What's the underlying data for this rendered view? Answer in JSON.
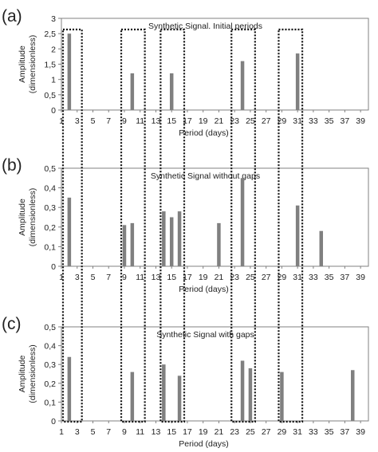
{
  "figure": {
    "colors": {
      "bar": "#808080",
      "axis": "#808080",
      "box": "#111111",
      "text": "#222222"
    }
  },
  "chart_data": [
    {
      "panel_letter": "(a)",
      "type": "bar",
      "title": "Synthetic Signal. Initial periods",
      "xlabel": "Period (days)",
      "ylabel": [
        "Amplitude",
        "(dimensionless)"
      ],
      "ylim": [
        0,
        3
      ],
      "yticks": [
        "0",
        "0,5",
        "1",
        "1,5",
        "2",
        "2,5",
        "3"
      ],
      "xlim": [
        1,
        40
      ],
      "xticks": [
        1,
        3,
        5,
        7,
        9,
        11,
        13,
        15,
        17,
        19,
        21,
        23,
        25,
        27,
        29,
        31,
        33,
        35,
        37,
        39
      ],
      "grid": false,
      "x": [
        2,
        10,
        15,
        24,
        31
      ],
      "values": [
        2.5,
        1.2,
        1.2,
        1.6,
        1.85
      ]
    },
    {
      "panel_letter": "(b)",
      "type": "bar",
      "title": "Synthetic Signal without gaps",
      "xlabel": "Period (days)",
      "ylabel": [
        "Amplitude",
        "(dimensionless)"
      ],
      "ylim": [
        0,
        0.5
      ],
      "yticks": [
        "0",
        "0,1",
        "0,2",
        "0,3",
        "0,4",
        "0,5"
      ],
      "xlim": [
        1,
        40
      ],
      "xticks": [
        1,
        3,
        5,
        7,
        9,
        11,
        13,
        15,
        17,
        19,
        21,
        23,
        25,
        27,
        29,
        31,
        33,
        35,
        37,
        39
      ],
      "grid": false,
      "x": [
        2,
        9,
        10,
        14,
        15,
        16,
        21,
        24,
        31,
        34
      ],
      "values": [
        0.35,
        0.21,
        0.22,
        0.28,
        0.25,
        0.28,
        0.22,
        0.45,
        0.31,
        0.18
      ]
    },
    {
      "panel_letter": "(c)",
      "type": "bar",
      "title": "Synthetic Signal with gaps",
      "xlabel": "Period (days)",
      "ylabel": [
        "Amplitude",
        "(dimensionless)"
      ],
      "ylim": [
        0,
        0.5
      ],
      "yticks": [
        "0",
        "0,1",
        "0,2",
        "0,3",
        "0,4",
        "0,5"
      ],
      "xlim": [
        1,
        40
      ],
      "xticks": [
        1,
        3,
        5,
        7,
        9,
        11,
        13,
        15,
        17,
        19,
        21,
        23,
        25,
        27,
        29,
        31,
        33,
        35,
        37,
        39
      ],
      "grid": false,
      "x": [
        2,
        10,
        14,
        16,
        24,
        25,
        29,
        38
      ],
      "values": [
        0.34,
        0.26,
        0.3,
        0.24,
        0.32,
        0.28,
        0.26,
        0.27
      ]
    }
  ],
  "highlight_windows": [
    [
      1.2,
      3.6
    ],
    [
      8.6,
      11.6
    ],
    [
      13.6,
      16.6
    ],
    [
      22.6,
      25.6
    ],
    [
      28.6,
      31.6
    ]
  ]
}
